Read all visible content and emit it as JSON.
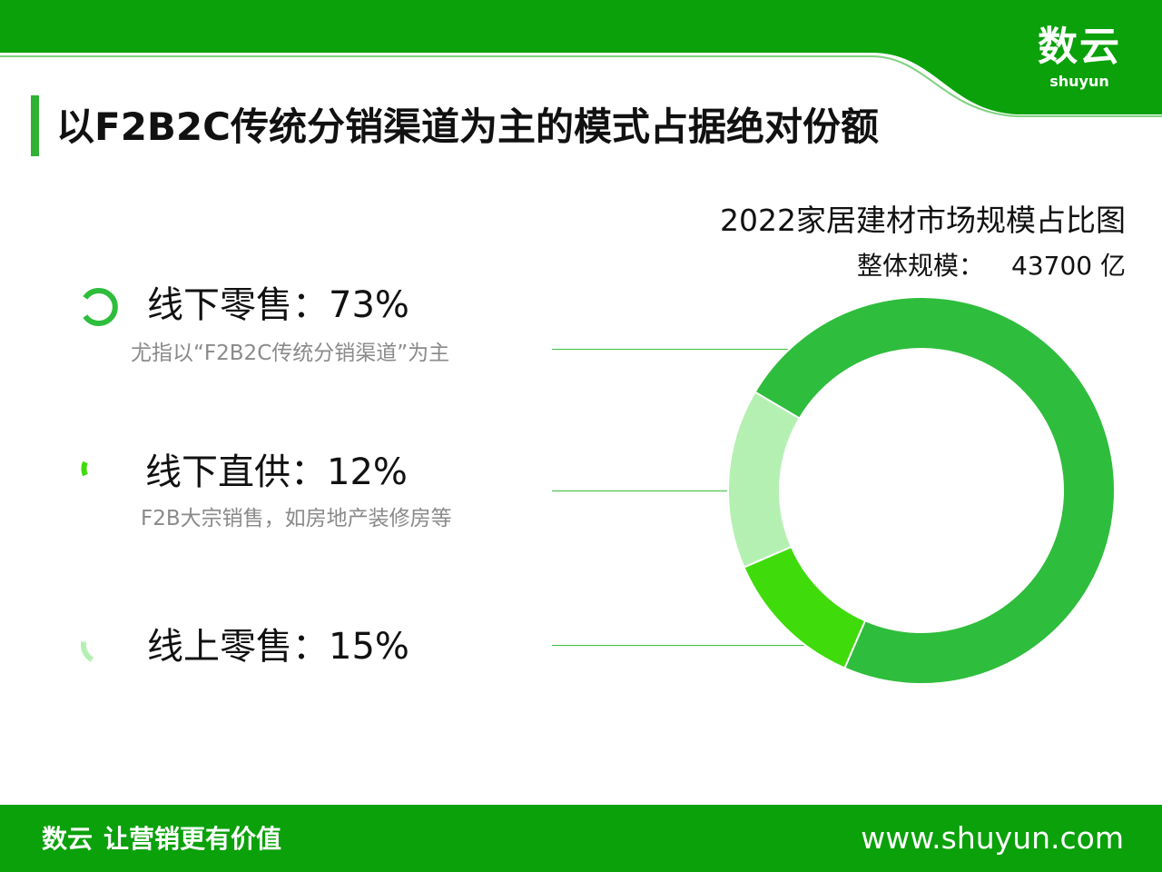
{
  "header": {
    "logo_cn": "数云",
    "logo_en": "shuyun",
    "title": "以F2B2C传统分销渠道为主的模式占据绝对份额"
  },
  "chart": {
    "title": "2022家居建材市场规模占比图",
    "scale_label": "整体规模：",
    "scale_value": "43700 亿"
  },
  "legend": [
    {
      "label": "线下零售：73%",
      "desc": "尤指以“F2B2C传统分销渠道”为主"
    },
    {
      "label": "线下直供：12%",
      "desc": "F2B大宗销售，如房地产装修房等"
    },
    {
      "label": "线上零售：15%",
      "desc": ""
    }
  ],
  "colors": {
    "brand_green": "#0aa10a",
    "offline_retail": "#2ebd3c",
    "offline_direct": "#3fdb0b",
    "online_retail": "#b5f0b3"
  },
  "chart_data": {
    "type": "pie",
    "title": "2022家居建材市场规模占比图",
    "categories": [
      "线下零售",
      "线下直供",
      "线上零售"
    ],
    "values": [
      73,
      12,
      15
    ],
    "unit": "%",
    "total": "43700 亿"
  },
  "footer": {
    "brand": "数云",
    "slogan": "让营销更有价值",
    "website": "www.shuyun.com"
  }
}
